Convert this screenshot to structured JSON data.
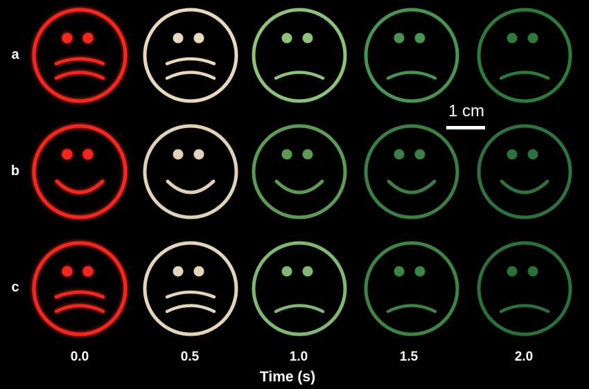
{
  "rows": [
    {
      "label": "a",
      "expression": "sad",
      "colors": [
        "#f0281f",
        "#e8d8be",
        "#8fc07d",
        "#4b9352",
        "#2e7a3d"
      ]
    },
    {
      "label": "b",
      "expression": "happy",
      "colors": [
        "#f0281f",
        "#e0d2b8",
        "#5e9a55",
        "#3c7e45",
        "#2f7040"
      ]
    },
    {
      "label": "c",
      "expression": "sad",
      "colors": [
        "#f0281f",
        "#e3d5bb",
        "#82b675",
        "#3f8446",
        "#2c6f3b"
      ]
    }
  ],
  "time_values": [
    "0.0",
    "0.5",
    "1.0",
    "1.5",
    "2.0"
  ],
  "axis_title": "Time (s)",
  "scale_bar_label": "1 cm",
  "background_color": "#000000"
}
